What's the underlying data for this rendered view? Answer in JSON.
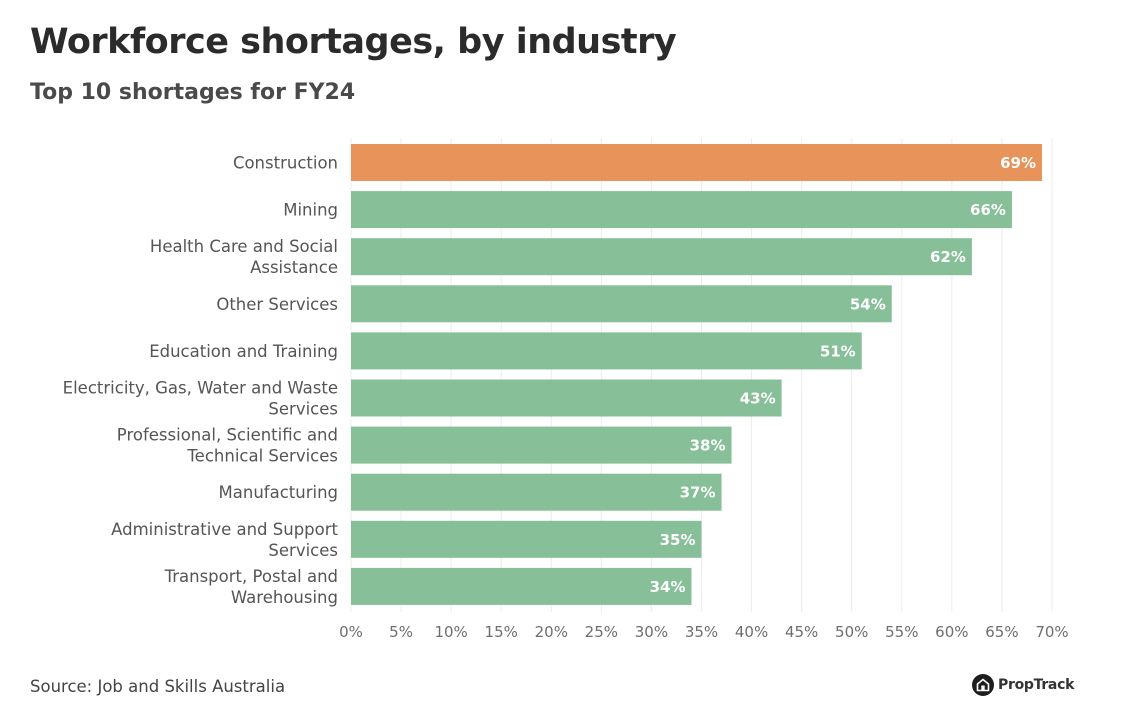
{
  "header": {
    "title": "Workforce shortages, by industry",
    "subtitle": "Top 10 shortages for FY24"
  },
  "footer": {
    "source": "Source: Job and Skills Australia",
    "logo_icon": "proptrack-house-icon",
    "logo_text": "PropTrack"
  },
  "colors": {
    "highlight": "#E8935A",
    "default": "#86BF98",
    "gridline": "#ececec"
  },
  "chart_data": {
    "type": "bar",
    "orientation": "horizontal",
    "title": "Workforce shortages, by industry",
    "subtitle": "Top 10 shortages for FY24",
    "xlabel": "",
    "ylabel": "",
    "xlim": [
      0,
      70
    ],
    "x_ticks": [
      0,
      5,
      10,
      15,
      20,
      25,
      30,
      35,
      40,
      45,
      50,
      55,
      60,
      65,
      70
    ],
    "x_tick_labels": [
      "0%",
      "5%",
      "10%",
      "15%",
      "20%",
      "25%",
      "30%",
      "35%",
      "40%",
      "45%",
      "50%",
      "55%",
      "60%",
      "65%",
      "70%"
    ],
    "grid": true,
    "legend": "none",
    "categories": [
      [
        "Construction"
      ],
      [
        "Mining"
      ],
      [
        "Health Care and Social",
        "Assistance"
      ],
      [
        "Other Services"
      ],
      [
        "Education and Training"
      ],
      [
        "Electricity, Gas, Water and Waste",
        "Services"
      ],
      [
        "Professional, Scientific and",
        "Technical Services"
      ],
      [
        "Manufacturing"
      ],
      [
        "Administrative and Support",
        "Services"
      ],
      [
        "Transport, Postal and",
        "Warehousing"
      ]
    ],
    "values": [
      69,
      66,
      62,
      54,
      51,
      43,
      38,
      37,
      35,
      34
    ],
    "value_labels": [
      "69%",
      "66%",
      "62%",
      "54%",
      "51%",
      "43%",
      "38%",
      "37%",
      "35%",
      "34%"
    ],
    "highlight_index": 0,
    "source": "Job and Skills Australia"
  }
}
